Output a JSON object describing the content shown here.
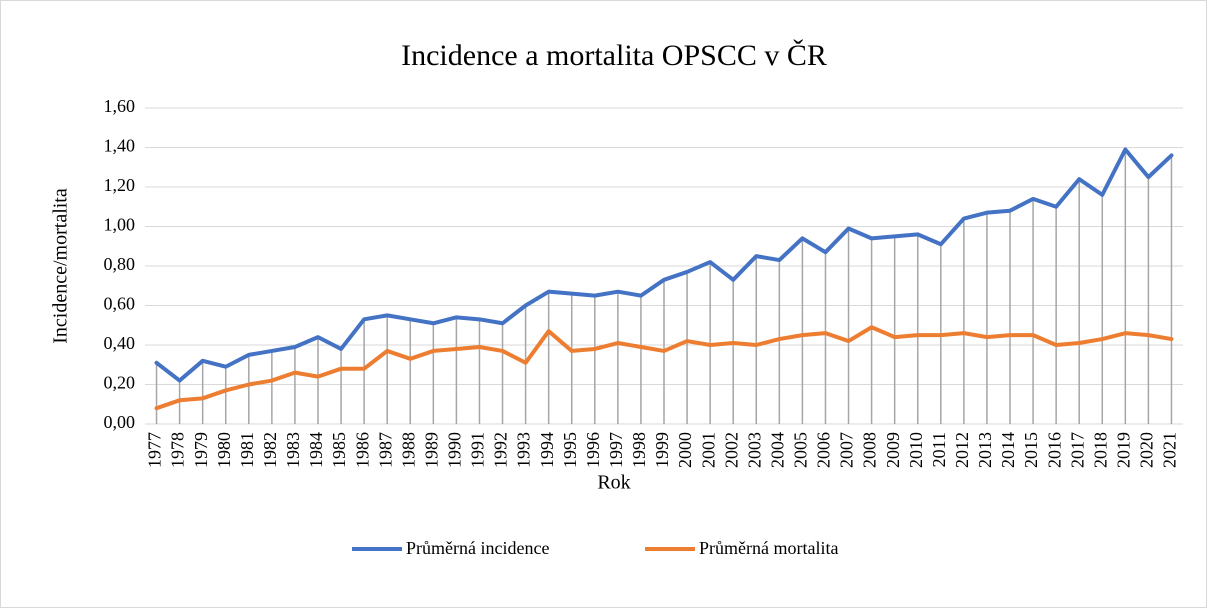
{
  "chart_data": {
    "type": "line",
    "title": "Incidence a mortalita OPSCC v ČR",
    "x_label": "Rok",
    "y_label": "Incidence/mortalita",
    "categories": [
      "1977",
      "1978",
      "1979",
      "1980",
      "1981",
      "1982",
      "1983",
      "1984",
      "1985",
      "1986",
      "1987",
      "1988",
      "1989",
      "1990",
      "1991",
      "1992",
      "1993",
      "1994",
      "1995",
      "1996",
      "1997",
      "1998",
      "1999",
      "2000",
      "2001",
      "2002",
      "2003",
      "2004",
      "2005",
      "2006",
      "2007",
      "2008",
      "2009",
      "2010",
      "2011",
      "2012",
      "2013",
      "2014",
      "2015",
      "2016",
      "2017",
      "2018",
      "2019",
      "2020",
      "2021"
    ],
    "series": [
      {
        "name": "Průměrná incidence",
        "color": "#4472c4",
        "values": [
          0.31,
          0.22,
          0.32,
          0.29,
          0.35,
          0.37,
          0.39,
          0.44,
          0.38,
          0.53,
          0.55,
          0.53,
          0.51,
          0.54,
          0.53,
          0.51,
          0.6,
          0.67,
          0.66,
          0.65,
          0.67,
          0.65,
          0.73,
          0.77,
          0.82,
          0.73,
          0.85,
          0.83,
          0.94,
          0.87,
          0.99,
          0.94,
          0.95,
          0.96,
          0.91,
          1.04,
          1.07,
          1.08,
          1.14,
          1.1,
          1.24,
          1.16,
          1.39,
          1.25,
          1.36
        ]
      },
      {
        "name": "Průměrná mortalita",
        "color": "#ed7d31",
        "values": [
          0.08,
          0.12,
          0.13,
          0.17,
          0.2,
          0.22,
          0.26,
          0.24,
          0.28,
          0.28,
          0.37,
          0.33,
          0.37,
          0.38,
          0.39,
          0.37,
          0.31,
          0.47,
          0.37,
          0.38,
          0.41,
          0.39,
          0.37,
          0.42,
          0.4,
          0.41,
          0.4,
          0.43,
          0.45,
          0.46,
          0.42,
          0.49,
          0.44,
          0.45,
          0.45,
          0.46,
          0.44,
          0.45,
          0.45,
          0.4,
          0.41,
          0.43,
          0.46,
          0.45,
          0.43
        ]
      }
    ],
    "ylim": [
      0,
      1.6
    ],
    "yticks": [
      {
        "value": 0,
        "label": "0,00"
      },
      {
        "value": 0.2,
        "label": "0,20"
      },
      {
        "value": 0.4,
        "label": "0,40"
      },
      {
        "value": 0.6,
        "label": "0,60"
      },
      {
        "value": 0.8,
        "label": "0,80"
      },
      {
        "value": 1.0,
        "label": "1,00"
      },
      {
        "value": 1.2,
        "label": "1,20"
      },
      {
        "value": 1.4,
        "label": "1,40"
      },
      {
        "value": 1.6,
        "label": "1,60"
      }
    ],
    "grid": true,
    "drop_lines": true,
    "legend": "bottom"
  }
}
